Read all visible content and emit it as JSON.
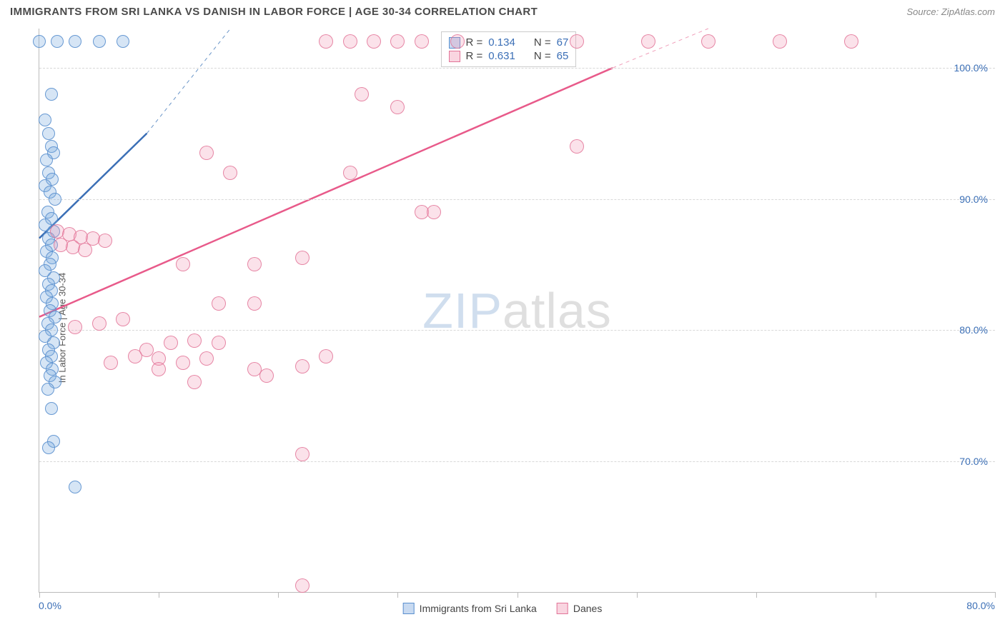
{
  "title": "IMMIGRANTS FROM SRI LANKA VS DANISH IN LABOR FORCE | AGE 30-34 CORRELATION CHART",
  "source": "Source: ZipAtlas.com",
  "y_axis_label": "In Labor Force | Age 30-34",
  "watermark": {
    "part1": "ZIP",
    "part2": "atlas"
  },
  "chart": {
    "type": "scatter",
    "background_color": "#ffffff",
    "grid_color": "#d8d8d8",
    "axis_color": "#bbbbbb",
    "tick_label_color": "#3b6fb6",
    "x_range": [
      0,
      80
    ],
    "y_range": [
      60,
      103
    ],
    "y_ticks": [
      70,
      80,
      90,
      100
    ],
    "y_tick_labels": [
      "70.0%",
      "80.0%",
      "90.0%",
      "100.0%"
    ],
    "x_tick_positions": [
      0,
      10,
      20,
      30,
      40,
      50,
      60,
      70,
      80
    ],
    "x_start_label": "0.0%",
    "x_end_label": "80.0%",
    "series": [
      {
        "name": "Immigrants from Sri Lanka",
        "key": "blue",
        "color_fill": "rgba(120,168,222,0.30)",
        "color_stroke": "#5a8fce",
        "marker_size": 18,
        "r_value": "0.134",
        "n_value": "67",
        "trend_solid": {
          "x1": 0,
          "y1": 87,
          "x2": 9,
          "y2": 95,
          "color": "#3b6fb6",
          "width": 2.5
        },
        "trend_dashed": {
          "x1": 9,
          "y1": 95,
          "x2": 16,
          "y2": 103,
          "color": "#6a95c8",
          "width": 1
        },
        "points": [
          [
            0,
            102
          ],
          [
            1.5,
            102
          ],
          [
            3,
            102
          ],
          [
            5,
            102
          ],
          [
            7,
            102
          ],
          [
            1,
            98
          ],
          [
            0.5,
            96
          ],
          [
            0.8,
            95
          ],
          [
            1,
            94
          ],
          [
            1.2,
            93.5
          ],
          [
            0.6,
            93
          ],
          [
            0.8,
            92
          ],
          [
            1.1,
            91.5
          ],
          [
            0.5,
            91
          ],
          [
            0.9,
            90.5
          ],
          [
            1.3,
            90
          ],
          [
            0.7,
            89
          ],
          [
            1,
            88.5
          ],
          [
            0.5,
            88
          ],
          [
            1.2,
            87.5
          ],
          [
            0.8,
            87
          ],
          [
            1,
            86.5
          ],
          [
            0.6,
            86
          ],
          [
            1.1,
            85.5
          ],
          [
            0.9,
            85
          ],
          [
            0.5,
            84.5
          ],
          [
            1.2,
            84
          ],
          [
            0.8,
            83.5
          ],
          [
            1,
            83
          ],
          [
            0.6,
            82.5
          ],
          [
            1.1,
            82
          ],
          [
            0.9,
            81.5
          ],
          [
            1.3,
            81
          ],
          [
            0.7,
            80.5
          ],
          [
            1,
            80
          ],
          [
            0.5,
            79.5
          ],
          [
            1.2,
            79
          ],
          [
            0.8,
            78.5
          ],
          [
            1,
            78
          ],
          [
            0.6,
            77.5
          ],
          [
            1.1,
            77
          ],
          [
            0.9,
            76.5
          ],
          [
            1.3,
            76
          ],
          [
            0.7,
            75.5
          ],
          [
            1,
            74
          ],
          [
            1.2,
            71.5
          ],
          [
            0.8,
            71
          ],
          [
            3,
            68
          ]
        ]
      },
      {
        "name": "Danes",
        "key": "pink",
        "color_fill": "rgba(240,150,178,0.28)",
        "color_stroke": "#e27498",
        "marker_size": 20,
        "r_value": "0.631",
        "n_value": "65",
        "trend_solid": {
          "x1": 0,
          "y1": 81,
          "x2": 48,
          "y2": 100,
          "color": "#e85a8a",
          "width": 2.5
        },
        "trend_dashed": {
          "x1": 48,
          "y1": 100,
          "x2": 56,
          "y2": 103,
          "color": "#f0a0bb",
          "width": 1
        },
        "points": [
          [
            24,
            102
          ],
          [
            26,
            102
          ],
          [
            28,
            102
          ],
          [
            30,
            102
          ],
          [
            32,
            102
          ],
          [
            35,
            102
          ],
          [
            45,
            102
          ],
          [
            51,
            102
          ],
          [
            56,
            102
          ],
          [
            62,
            102
          ],
          [
            68,
            102
          ],
          [
            27,
            98
          ],
          [
            30,
            97
          ],
          [
            45,
            94
          ],
          [
            14,
            93.5
          ],
          [
            16,
            92
          ],
          [
            26,
            92
          ],
          [
            32,
            89
          ],
          [
            33,
            89
          ],
          [
            1.5,
            87.5
          ],
          [
            2.5,
            87.3
          ],
          [
            3.5,
            87.1
          ],
          [
            4.5,
            87
          ],
          [
            5.5,
            86.8
          ],
          [
            1.8,
            86.5
          ],
          [
            2.8,
            86.3
          ],
          [
            3.8,
            86.1
          ],
          [
            12,
            85
          ],
          [
            18,
            85
          ],
          [
            22,
            85.5
          ],
          [
            15,
            82
          ],
          [
            18,
            82
          ],
          [
            5,
            80.5
          ],
          [
            7,
            80.8
          ],
          [
            3,
            80.2
          ],
          [
            9,
            78.5
          ],
          [
            11,
            79
          ],
          [
            13,
            79.2
          ],
          [
            15,
            79
          ],
          [
            6,
            77.5
          ],
          [
            8,
            78
          ],
          [
            10,
            77.8
          ],
          [
            12,
            77.5
          ],
          [
            14,
            77.8
          ],
          [
            10,
            77
          ],
          [
            18,
            77
          ],
          [
            22,
            77.2
          ],
          [
            24,
            78
          ],
          [
            13,
            76
          ],
          [
            19,
            76.5
          ],
          [
            22,
            70.5
          ],
          [
            22,
            60.5
          ]
        ]
      }
    ]
  },
  "stats_box": {
    "rows": [
      {
        "swatch": "blue",
        "r": "0.134",
        "n": "67"
      },
      {
        "swatch": "pink",
        "r": "0.631",
        "n": "65"
      }
    ],
    "r_label": "R =",
    "n_label": "N ="
  },
  "bottom_legend": [
    {
      "swatch": "blue",
      "label": "Immigrants from Sri Lanka"
    },
    {
      "swatch": "pink",
      "label": "Danes"
    }
  ]
}
